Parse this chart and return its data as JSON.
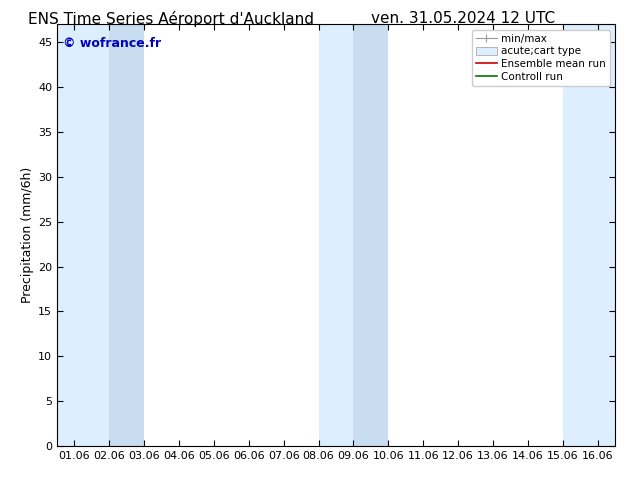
{
  "title_left": "ENS Time Series Aéroport d'Auckland",
  "title_right": "ven. 31.05.2024 12 UTC",
  "ylabel": "Precipitation (mm/6h)",
  "watermark": "© wofrance.fr",
  "ylim": [
    0,
    47
  ],
  "yticks": [
    0,
    5,
    10,
    15,
    20,
    25,
    30,
    35,
    40,
    45
  ],
  "x_labels": [
    "01.06",
    "02.06",
    "03.06",
    "04.06",
    "05.06",
    "06.06",
    "07.06",
    "08.06",
    "09.06",
    "10.06",
    "11.06",
    "12.06",
    "13.06",
    "14.06",
    "15.06",
    "16.06"
  ],
  "x_values": [
    0,
    1,
    2,
    3,
    4,
    5,
    6,
    7,
    8,
    9,
    10,
    11,
    12,
    13,
    14,
    15
  ],
  "xlim": [
    -0.5,
    15.5
  ],
  "shaded_bands": [
    {
      "x_start": -0.5,
      "x_end": 1.0
    },
    {
      "x_start": 1.0,
      "x_end": 2.0
    },
    {
      "x_start": 7.0,
      "x_end": 8.0
    },
    {
      "x_start": 8.0,
      "x_end": 9.0
    },
    {
      "x_start": 14.0,
      "x_end": 15.5
    }
  ],
  "shade_color_light": "#ddeeff",
  "shade_color_mid": "#c8ddf0",
  "background_color": "#ffffff",
  "legend_entries": [
    {
      "label": "min/max",
      "type": "errorbar"
    },
    {
      "label": "acute;cart type",
      "type": "box"
    },
    {
      "label": "Ensemble mean run",
      "type": "line",
      "color": "#cc0000"
    },
    {
      "label": "Controll run",
      "type": "line",
      "color": "#007700"
    }
  ],
  "title_fontsize": 11,
  "label_fontsize": 9,
  "tick_fontsize": 8,
  "watermark_color": "#0000bb",
  "watermark_fontsize": 9
}
